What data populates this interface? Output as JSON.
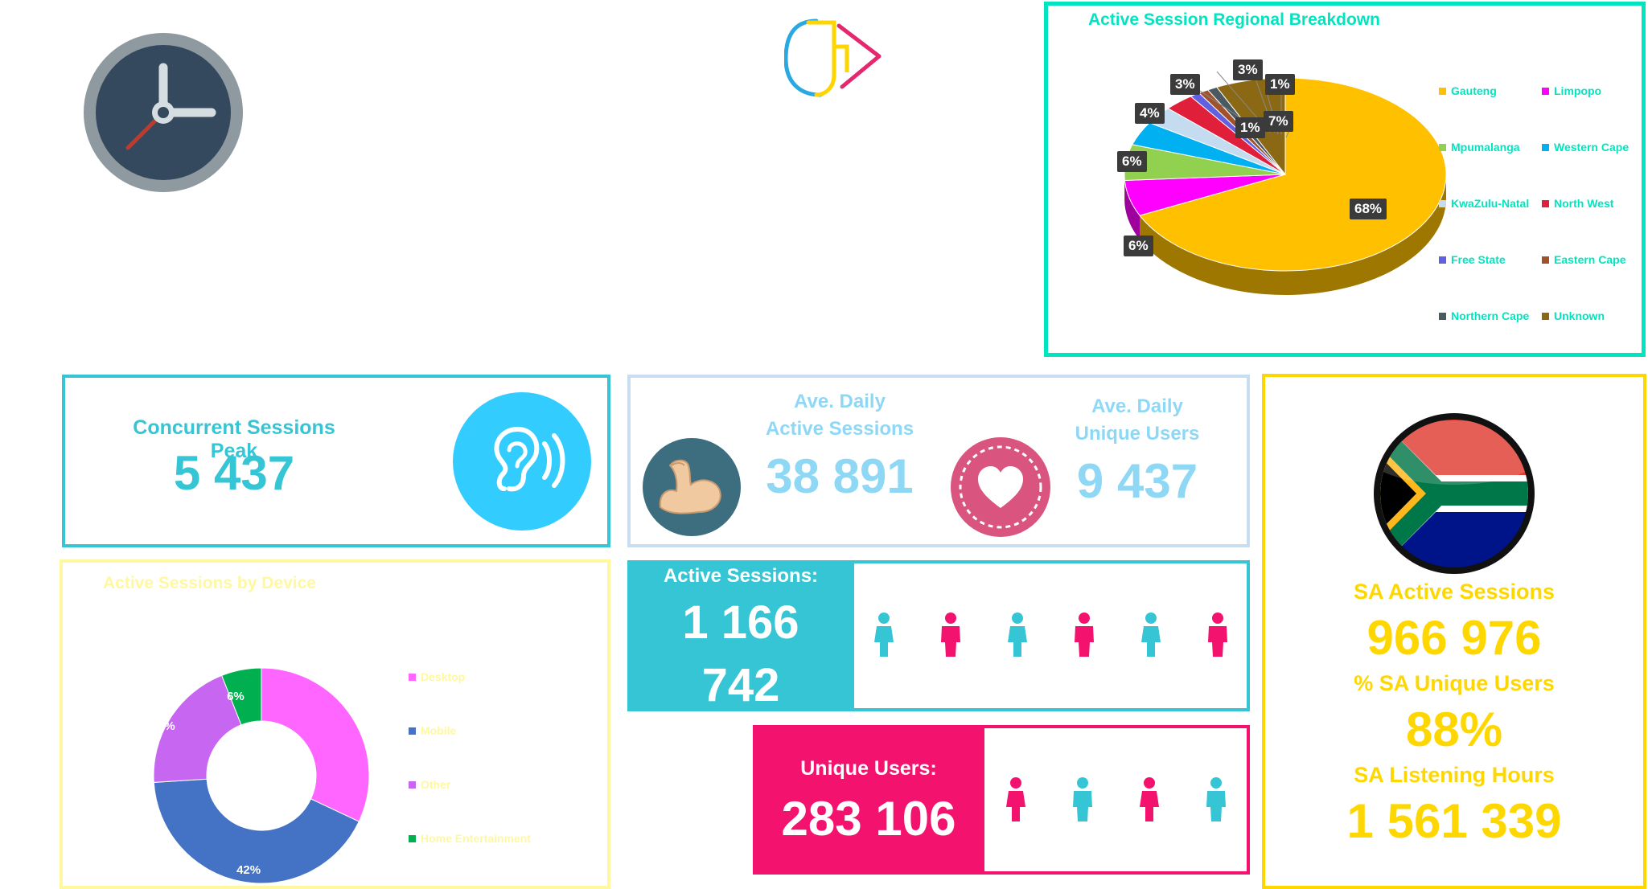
{
  "colors": {
    "teal": "#36C5D5",
    "lightblue": "#8FD8F5",
    "yellow": "#FFD700",
    "paleyellow": "#FFF8A0",
    "pink": "#F3136F",
    "aqua": "#00E5C0",
    "border_light": "#C9DDF0"
  },
  "icons": {
    "clock": "clock-icon",
    "logo": "app-logo",
    "ear": "ear-icon",
    "muscle": "flexed-bicep-icon",
    "heart": "heart-icon",
    "flag": "south-africa-flag",
    "person": "person-icon"
  },
  "concurrent": {
    "title": "Concurrent Sessions Peak",
    "value": "5 437"
  },
  "daily_active": {
    "title_line1": "Ave. Daily",
    "title_line2": "Active Sessions",
    "value": "38 891"
  },
  "daily_unique": {
    "title_line1": "Ave. Daily",
    "title_line2": "Unique Users",
    "value": "9 437"
  },
  "active_sessions": {
    "label": "Active Sessions:",
    "value_line1": "1 166",
    "value_line2": "742"
  },
  "unique_users": {
    "label": "Unique Users:",
    "value": "283 106"
  },
  "sa_stats": {
    "active_label": "SA Active Sessions",
    "active_value": "966 976",
    "unique_label": "% SA Unique Users",
    "unique_value": "88%",
    "hours_label": "SA Listening Hours",
    "hours_value": "1 561 339"
  },
  "chart_data": [
    {
      "type": "pie",
      "title": "Active Session Regional Breakdown",
      "categories": [
        "Gauteng",
        "Limpopo",
        "Mpumalanga",
        "Western Cape",
        "KwaZulu-Natal",
        "North West",
        "Free State",
        "Eastern Cape",
        "Northern Cape",
        "Unknown"
      ],
      "values": [
        68,
        6,
        6,
        4,
        3,
        3,
        1,
        1,
        1,
        7
      ],
      "data_labels": [
        "68%",
        "6%",
        "6%",
        "4%",
        "3%",
        "3%",
        "1%",
        "1%",
        "1%",
        "7%"
      ],
      "colors": [
        "#FFC000",
        "#FF00FF",
        "#92D050",
        "#00B0F0",
        "#C5DCF0",
        "#E0203A",
        "#6060E0",
        "#A0522D",
        "#4A5A60",
        "#8B6914"
      ],
      "legend_position": "right"
    },
    {
      "type": "pie",
      "title": "Active Sessions by Device",
      "categories": [
        "Desktop",
        "Mobile",
        "Other",
        "Home Entertainment"
      ],
      "values": [
        32,
        42,
        20,
        6
      ],
      "data_labels": [
        "32%",
        "42%",
        "20%",
        "6%"
      ],
      "colors": [
        "#FF66FF",
        "#4472C4",
        "#C766F0",
        "#00B050"
      ],
      "legend_position": "right"
    }
  ]
}
